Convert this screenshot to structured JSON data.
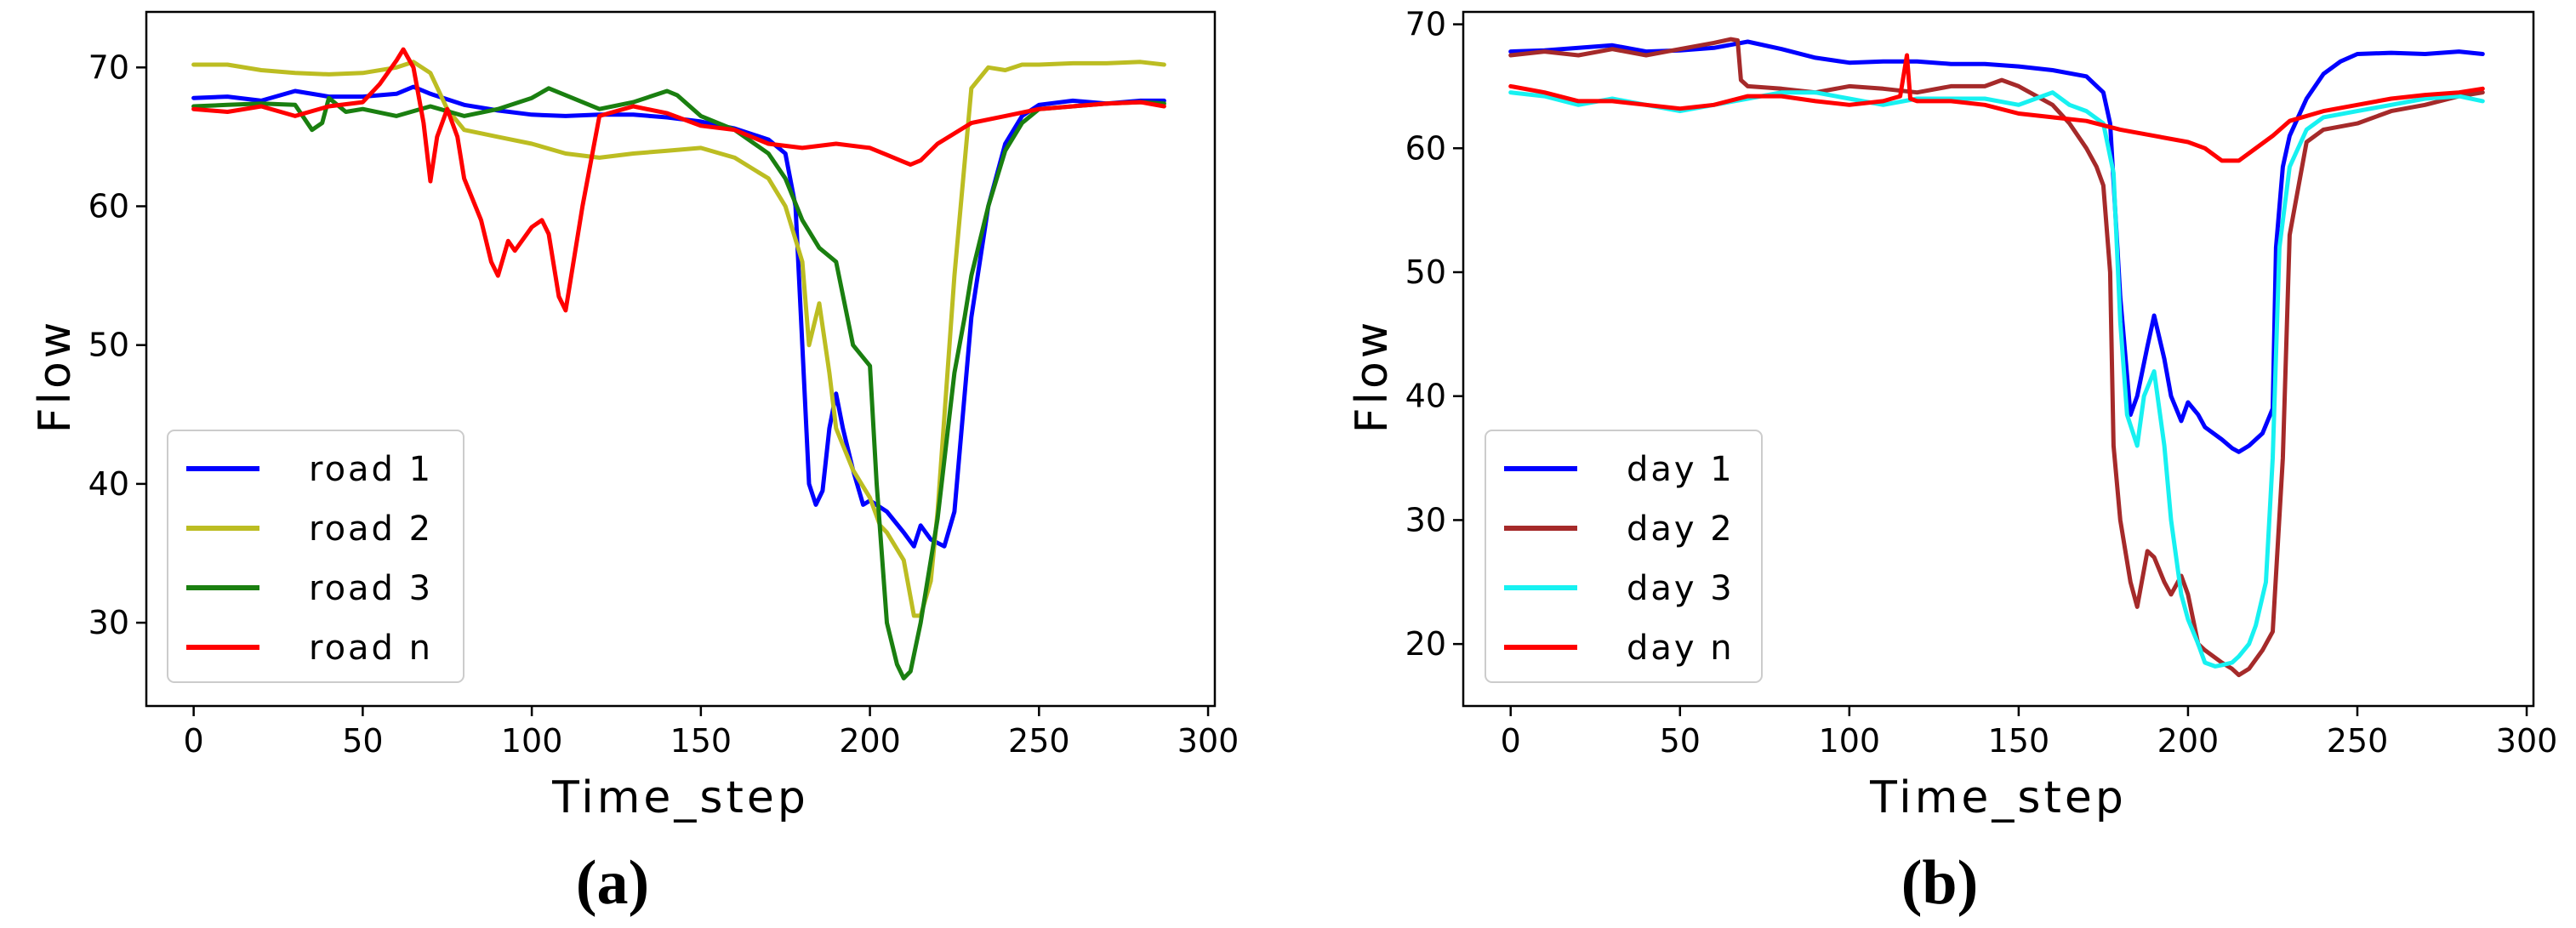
{
  "chart_data": [
    {
      "type": "line",
      "panel_label": "(a)",
      "xlabel": "Time_step",
      "ylabel": "Flow",
      "xlim": [
        -14,
        302
      ],
      "ylim": [
        24,
        74
      ],
      "xticks": [
        0,
        50,
        100,
        150,
        200,
        250,
        300
      ],
      "yticks": [
        30,
        40,
        50,
        60,
        70
      ],
      "legend_position": "lower-left",
      "series": [
        {
          "name": "road 1",
          "color": "#0000ff",
          "x": [
            0,
            10,
            20,
            30,
            40,
            50,
            60,
            65,
            70,
            80,
            90,
            100,
            110,
            120,
            130,
            140,
            150,
            160,
            170,
            175,
            178,
            180,
            182,
            184,
            186,
            188,
            190,
            192,
            195,
            198,
            200,
            205,
            210,
            213,
            215,
            218,
            222,
            225,
            230,
            235,
            240,
            245,
            250,
            260,
            270,
            280,
            287
          ],
          "y": [
            67.8,
            67.9,
            67.6,
            68.3,
            67.9,
            67.9,
            68.1,
            68.6,
            68.1,
            67.3,
            66.9,
            66.6,
            66.5,
            66.6,
            66.6,
            66.4,
            66.1,
            65.6,
            64.8,
            63.8,
            60,
            50,
            40,
            38.5,
            39.5,
            44,
            46.5,
            44,
            41,
            38.5,
            38.8,
            38,
            36.5,
            35.5,
            37,
            36,
            35.5,
            38,
            52,
            60,
            64.5,
            66.5,
            67.3,
            67.6,
            67.4,
            67.6,
            67.6
          ]
        },
        {
          "name": "road 2",
          "color": "#bcbd22",
          "x": [
            0,
            10,
            20,
            30,
            40,
            50,
            60,
            65,
            70,
            75,
            80,
            90,
            100,
            110,
            120,
            130,
            140,
            150,
            160,
            170,
            175,
            180,
            182,
            185,
            188,
            190,
            195,
            200,
            203,
            205,
            210,
            213,
            215,
            218,
            220,
            225,
            230,
            235,
            240,
            245,
            250,
            260,
            270,
            280,
            287
          ],
          "y": [
            70.2,
            70.2,
            69.8,
            69.6,
            69.5,
            69.6,
            70,
            70.4,
            69.6,
            67,
            65.5,
            65,
            64.5,
            63.8,
            63.5,
            63.8,
            64,
            64.2,
            63.5,
            62,
            60,
            56,
            50,
            53,
            48,
            44,
            41,
            39,
            37,
            36.5,
            34.5,
            30.5,
            30.5,
            33,
            38,
            55,
            68.5,
            70,
            69.8,
            70.2,
            70.2,
            70.3,
            70.3,
            70.4,
            70.2
          ]
        },
        {
          "name": "road 3",
          "color": "#1a7f10",
          "x": [
            0,
            10,
            20,
            30,
            35,
            38,
            40,
            45,
            50,
            60,
            70,
            80,
            90,
            100,
            105,
            110,
            120,
            130,
            140,
            143,
            150,
            160,
            170,
            175,
            180,
            185,
            190,
            195,
            200,
            202,
            205,
            208,
            210,
            212,
            215,
            220,
            225,
            228,
            230,
            235,
            240,
            245,
            250,
            260,
            270,
            280,
            287
          ],
          "y": [
            67.2,
            67.3,
            67.4,
            67.3,
            65.5,
            66,
            67.8,
            66.8,
            67,
            66.5,
            67.2,
            66.5,
            67,
            67.8,
            68.5,
            68,
            67,
            67.5,
            68.3,
            68,
            66.5,
            65.5,
            63.8,
            62,
            59,
            57,
            56,
            50,
            48.5,
            40,
            30,
            27,
            26,
            26.5,
            30,
            37.5,
            48,
            52,
            55,
            60,
            64,
            66,
            67,
            67.2,
            67.4,
            67.5,
            67.4
          ]
        },
        {
          "name": "road n",
          "color": "#ff0000",
          "x": [
            0,
            10,
            20,
            30,
            40,
            50,
            55,
            60,
            62,
            65,
            68,
            70,
            72,
            75,
            78,
            80,
            85,
            88,
            90,
            93,
            95,
            100,
            103,
            105,
            108,
            110,
            115,
            120,
            130,
            140,
            150,
            160,
            170,
            180,
            190,
            200,
            205,
            210,
            212,
            215,
            220,
            230,
            240,
            250,
            260,
            270,
            280,
            287
          ],
          "y": [
            67,
            66.8,
            67.2,
            66.5,
            67.2,
            67.5,
            68.8,
            70.5,
            71.3,
            70,
            66,
            61.8,
            65,
            67,
            65,
            62,
            59,
            56,
            55,
            57.5,
            56.8,
            58.5,
            59,
            58,
            53.5,
            52.5,
            60,
            66.5,
            67.2,
            66.7,
            65.8,
            65.5,
            64.5,
            64.2,
            64.5,
            64.2,
            63.7,
            63.2,
            63,
            63.3,
            64.5,
            66,
            66.5,
            67,
            67.2,
            67.4,
            67.5,
            67.2
          ]
        }
      ]
    },
    {
      "type": "line",
      "panel_label": "(b)",
      "xlabel": "Time_step",
      "ylabel": "Flow",
      "xlim": [
        -14,
        302
      ],
      "ylim": [
        15,
        71
      ],
      "xticks": [
        0,
        50,
        100,
        150,
        200,
        250,
        300
      ],
      "yticks": [
        20,
        30,
        40,
        50,
        60,
        70
      ],
      "legend_position": "lower-left",
      "series": [
        {
          "name": "day 1",
          "color": "#0000ff",
          "x": [
            0,
            10,
            20,
            30,
            40,
            50,
            60,
            70,
            80,
            90,
            100,
            110,
            120,
            130,
            140,
            150,
            160,
            170,
            175,
            177,
            180,
            183,
            185,
            188,
            190,
            193,
            195,
            198,
            200,
            203,
            205,
            210,
            213,
            215,
            218,
            222,
            225,
            226,
            228,
            230,
            235,
            240,
            245,
            250,
            260,
            270,
            280,
            287
          ],
          "y": [
            67.8,
            67.9,
            68.1,
            68.3,
            67.8,
            67.9,
            68.1,
            68.6,
            68,
            67.3,
            66.9,
            67,
            67,
            66.8,
            66.8,
            66.6,
            66.3,
            65.8,
            64.5,
            62,
            48,
            38.5,
            40,
            44,
            46.5,
            43,
            40,
            38,
            39.5,
            38.5,
            37.5,
            36.5,
            35.8,
            35.5,
            36,
            37,
            39,
            52,
            58.5,
            61,
            64,
            66,
            67,
            67.6,
            67.7,
            67.6,
            67.8,
            67.6
          ]
        },
        {
          "name": "day 2",
          "color": "#a52a2a",
          "x": [
            0,
            10,
            20,
            30,
            40,
            50,
            60,
            65,
            67,
            68,
            70,
            80,
            90,
            100,
            110,
            120,
            130,
            140,
            145,
            150,
            160,
            165,
            170,
            173,
            175,
            177,
            178,
            180,
            183,
            185,
            188,
            190,
            193,
            195,
            198,
            200,
            203,
            205,
            210,
            213,
            215,
            218,
            222,
            225,
            228,
            230,
            235,
            240,
            250,
            260,
            270,
            280,
            287
          ],
          "y": [
            67.5,
            67.8,
            67.5,
            68,
            67.5,
            68,
            68.5,
            68.8,
            68.7,
            65.5,
            65,
            64.8,
            64.5,
            65,
            64.8,
            64.5,
            65,
            65,
            65.5,
            65,
            63.5,
            62,
            60,
            58.5,
            57,
            50,
            36,
            30,
            25,
            23,
            27.5,
            27,
            25,
            24,
            25.5,
            24,
            20,
            19.5,
            18.5,
            18,
            17.5,
            18,
            19.5,
            21,
            35,
            53,
            60.5,
            61.5,
            62,
            63,
            63.5,
            64.2,
            64.5
          ]
        },
        {
          "name": "day 3",
          "color": "#17f1f1",
          "x": [
            0,
            10,
            20,
            30,
            40,
            50,
            60,
            70,
            80,
            90,
            100,
            110,
            120,
            130,
            140,
            150,
            155,
            160,
            165,
            170,
            175,
            178,
            180,
            182,
            185,
            187,
            190,
            193,
            195,
            198,
            200,
            203,
            205,
            208,
            210,
            213,
            215,
            218,
            220,
            223,
            225,
            227,
            230,
            235,
            240,
            250,
            260,
            270,
            280,
            287
          ],
          "y": [
            64.5,
            64.2,
            63.5,
            64,
            63.5,
            63,
            63.5,
            64,
            64.5,
            64.5,
            64,
            63.5,
            64,
            64,
            64,
            63.5,
            64,
            64.5,
            63.5,
            63,
            62,
            58,
            46,
            38.5,
            36,
            40,
            42,
            36,
            30,
            24,
            22,
            20,
            18.5,
            18.2,
            18.3,
            18.5,
            19,
            20,
            21.5,
            25,
            35,
            52,
            58.5,
            61.5,
            62.5,
            63,
            63.5,
            64,
            64.2,
            63.8
          ]
        },
        {
          "name": "day n",
          "color": "#ff0000",
          "x": [
            0,
            10,
            20,
            30,
            40,
            50,
            60,
            70,
            80,
            90,
            100,
            110,
            115,
            117,
            118,
            120,
            130,
            140,
            150,
            160,
            170,
            180,
            190,
            200,
            205,
            210,
            215,
            220,
            225,
            230,
            240,
            250,
            260,
            270,
            280,
            287
          ],
          "y": [
            65,
            64.5,
            63.8,
            63.8,
            63.5,
            63.2,
            63.5,
            64.2,
            64.2,
            63.8,
            63.5,
            63.8,
            64.2,
            67.5,
            64,
            63.8,
            63.8,
            63.5,
            62.8,
            62.5,
            62.2,
            61.5,
            61,
            60.5,
            60,
            59,
            59,
            60,
            61,
            62.2,
            63,
            63.5,
            64,
            64.3,
            64.5,
            64.8
          ]
        }
      ]
    }
  ]
}
